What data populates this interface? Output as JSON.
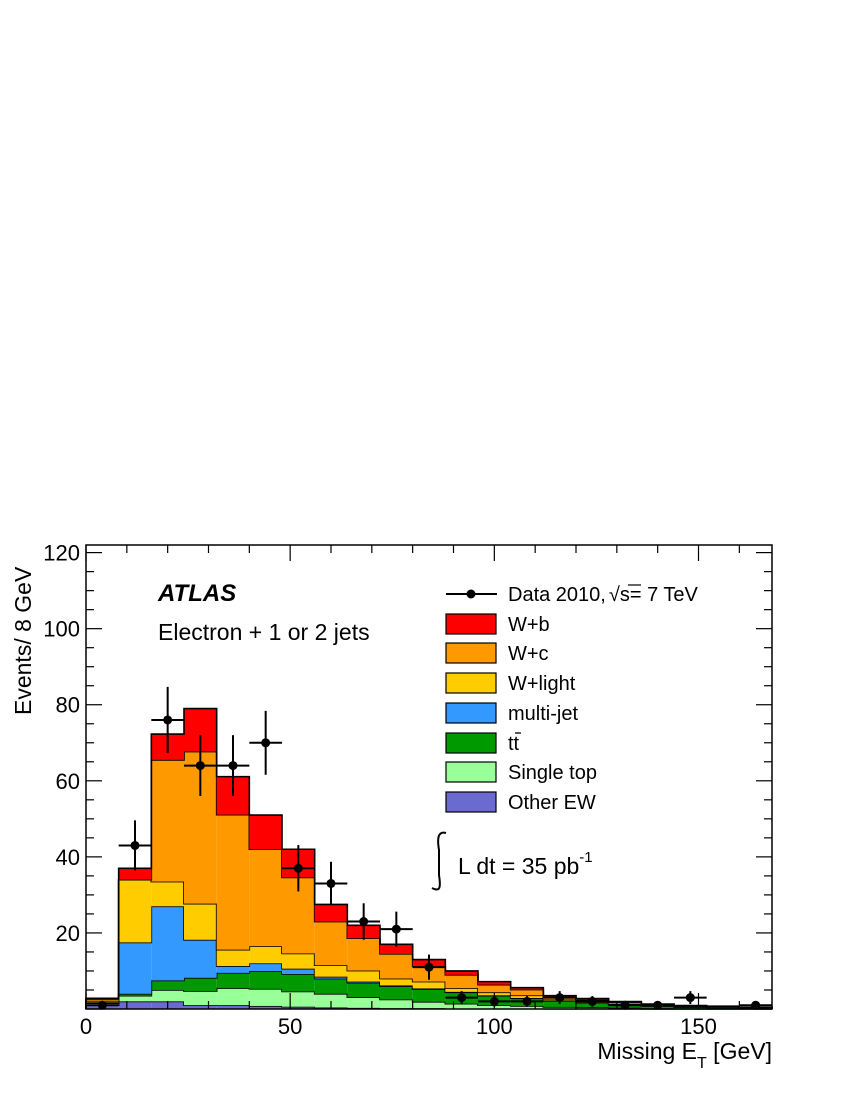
{
  "chart_data": {
    "type": "stacked-histogram",
    "experiment_label": "ATLAS",
    "channel_label": "Electron + 1 or 2 jets",
    "lumi_label": "L dt = 35 pb",
    "lumi_exponent": "-1",
    "xlabel": "Missing E",
    "xlabel_sub": "T",
    "xlabel_unit": " [GeV]",
    "ylabel": "Events/ 8 GeV",
    "xlim": [
      0,
      168
    ],
    "ylim": [
      0,
      122
    ],
    "x_ticks": [
      "0",
      "50",
      "100",
      "150"
    ],
    "x_tick_values": [
      0,
      50,
      100,
      150
    ],
    "y_ticks": [
      "20",
      "40",
      "60",
      "80",
      "100",
      "120"
    ],
    "y_tick_values": [
      20,
      40,
      60,
      80,
      100,
      120
    ],
    "bin_edges": [
      0,
      8,
      16,
      24,
      32,
      40,
      48,
      56,
      64,
      72,
      80,
      88,
      96,
      104,
      112,
      120,
      128,
      136,
      144,
      152,
      160,
      168
    ],
    "stack_order_bottom_to_top": [
      "Other EW",
      "Single top",
      "tt",
      "multi-jet",
      "W+light",
      "W+c",
      "W+b"
    ],
    "series": [
      {
        "name": "Other EW",
        "color": "#6a6ad0",
        "values": [
          1.0,
          2.0,
          2.0,
          1.0,
          1.0,
          0.8,
          0.6,
          0.4,
          0.3,
          0.2,
          0.2,
          0.1,
          0.1,
          0.1,
          0.05,
          0.05,
          0.05,
          0,
          0,
          0,
          0
        ]
      },
      {
        "name": "Single top",
        "color": "#99ff99",
        "values": [
          0.5,
          1.5,
          3.0,
          3.7,
          4.5,
          4.5,
          4.0,
          3.6,
          2.8,
          2.3,
          1.7,
          1.3,
          0.9,
          0.7,
          0.5,
          0.4,
          0.3,
          0.2,
          0.15,
          0.1,
          0.1
        ]
      },
      {
        "name": "tt",
        "color": "#009900",
        "values": [
          0.2,
          0.5,
          2.5,
          3.5,
          4.0,
          4.7,
          4.6,
          4.0,
          3.8,
          3.5,
          3.3,
          3.0,
          2.5,
          2.0,
          1.6,
          1.2,
          0.8,
          0.6,
          0.4,
          0.3,
          0.2
        ]
      },
      {
        "name": "multi-jet",
        "color": "#3399ff",
        "values": [
          0,
          13.5,
          19.5,
          10.0,
          1.8,
          2.0,
          1.4,
          0.5,
          0.3,
          0.2,
          0.2,
          0.1,
          0.1,
          0.1,
          0.05,
          0,
          0,
          0,
          0,
          0,
          0
        ]
      },
      {
        "name": "W+light",
        "color": "#ffcc00",
        "values": [
          0.3,
          16.5,
          6.5,
          9.5,
          4.3,
          4.5,
          4.0,
          3.0,
          2.9,
          1.8,
          1.8,
          1.0,
          0.8,
          0.7,
          0.3,
          0.2,
          0.2,
          0.1,
          0.1,
          0.1,
          0.05
        ]
      },
      {
        "name": "W+c",
        "color": "#ff9900",
        "values": [
          0.5,
          0,
          32.0,
          40.0,
          35.5,
          25.5,
          20.0,
          11.5,
          8.5,
          6.5,
          4.0,
          3.5,
          2.0,
          1.5,
          0.6,
          0.6,
          0.4,
          0.3,
          0.2,
          0.2,
          0.1
        ]
      },
      {
        "name": "W+b",
        "color": "#ff0000",
        "values": [
          0.3,
          3.0,
          6.8,
          11.3,
          10.0,
          9.0,
          7.4,
          4.5,
          3.4,
          2.5,
          1.8,
          1.0,
          0.8,
          0.5,
          0.4,
          0.3,
          0.2,
          0.1,
          0.05,
          0.05,
          0
        ]
      }
    ],
    "data": {
      "name": "Data 2010,",
      "sqrt_s_label": "s= 7 TeV",
      "x": [
        4,
        12,
        20,
        28,
        36,
        44,
        52,
        60,
        68,
        76,
        84,
        92,
        100,
        108,
        116,
        124,
        132,
        140,
        148,
        156,
        164
      ],
      "y": [
        1,
        43,
        76,
        64,
        64,
        70,
        37,
        33,
        23,
        21,
        11,
        3,
        2,
        2,
        3,
        2,
        1,
        1,
        3,
        0,
        1
      ],
      "yerr": [
        1.0,
        6.6,
        8.7,
        8.0,
        8.0,
        8.4,
        6.1,
        5.7,
        4.8,
        4.6,
        3.3,
        1.7,
        1.4,
        1.4,
        1.7,
        1.4,
        1.0,
        1.0,
        1.7,
        0,
        1.0
      ]
    },
    "legend": {
      "placement": "top-right",
      "entries": [
        {
          "label": "Data 2010,",
          "extra": "s= 7 TeV",
          "kind": "marker"
        },
        {
          "label": "W+b",
          "kind": "box",
          "color": "#ff0000"
        },
        {
          "label": "W+c",
          "kind": "box",
          "color": "#ff9900"
        },
        {
          "label": "W+light",
          "kind": "box",
          "color": "#ffcc00"
        },
        {
          "label": "multi-jet",
          "kind": "box",
          "color": "#3399ff"
        },
        {
          "label": "tt",
          "kind": "box",
          "color": "#009900",
          "overbar_second_char": true
        },
        {
          "label": "Single top",
          "kind": "box",
          "color": "#99ff99"
        },
        {
          "label": "Other EW",
          "kind": "box",
          "color": "#6a6ad0"
        }
      ]
    }
  }
}
